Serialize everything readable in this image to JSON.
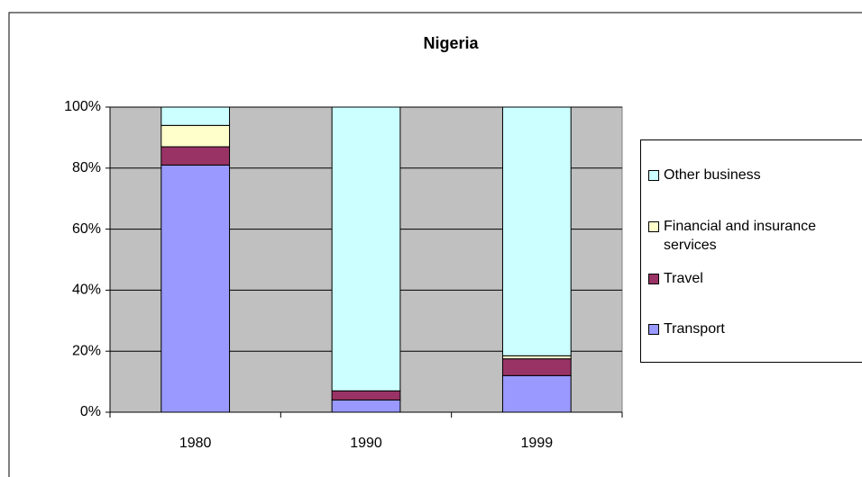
{
  "chart_data": {
    "type": "stacked_bar_percent",
    "title": "Nigeria",
    "categories": [
      "1980",
      "1990",
      "1999"
    ],
    "series": [
      {
        "name": "Transport",
        "color": "#9999ff",
        "values": [
          81,
          4,
          12
        ]
      },
      {
        "name": "Travel",
        "color": "#993366",
        "values": [
          6,
          3,
          5.5
        ]
      },
      {
        "name": "Financial and insurance services",
        "color": "#ffffcc",
        "values": [
          7,
          0,
          1
        ]
      },
      {
        "name": "Other business",
        "color": "#ccffff",
        "values": [
          6,
          93,
          81.5
        ]
      }
    ],
    "ylim": [
      0,
      100
    ],
    "yticks": [
      {
        "value": 0,
        "label": "0%"
      },
      {
        "value": 20,
        "label": "20%"
      },
      {
        "value": 40,
        "label": "40%"
      },
      {
        "value": 60,
        "label": "60%"
      },
      {
        "value": 80,
        "label": "80%"
      },
      {
        "value": 100,
        "label": "100%"
      }
    ],
    "grid": true,
    "plot_background": "#c0c0c0",
    "legend": "right"
  }
}
